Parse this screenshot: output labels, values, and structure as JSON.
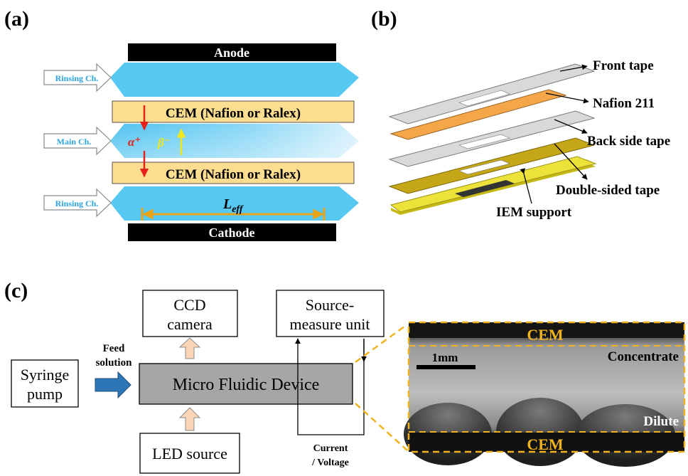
{
  "panel_a": {
    "label": "(a)",
    "anode": "Anode",
    "cathode": "Cathode",
    "rinsing_top": "Rinsing Ch.",
    "main": "Main Ch.",
    "rinsing_bottom": "Rinsing Ch.",
    "cem_top": "CEM (Nafion or Ralex)",
    "cem_bottom": "CEM (Nafion or Ralex)",
    "alpha": "α⁺",
    "beta": "β⁻",
    "leff_main": "L",
    "leff_sub": "eff",
    "colors": {
      "channel": "#56c8f2",
      "cem": "#fddd8f",
      "electrode": "#000000",
      "alpha": "#e32119",
      "beta": "#f2e71a",
      "leff": "#e8a316"
    }
  },
  "panel_b": {
    "label": "(b)",
    "front_tape": "Front tape",
    "nafion": "Nafion 211",
    "back_tape": "Back side tape",
    "double_tape": "Double-sided tape",
    "iem_support": "IEM support",
    "colors": {
      "tape": "#d9d9d9",
      "nafion": "#f4a649",
      "double": "#c5a617",
      "support": "#ece23a"
    }
  },
  "panel_c": {
    "label": "(c)",
    "syringe_line1": "Syringe",
    "syringe_line2": "pump",
    "feed_line1": "Feed",
    "feed_line2": "solution",
    "ccd_line1": "CCD",
    "ccd_line2": "camera",
    "smu_line1": "Source-",
    "smu_line2": "measure unit",
    "device": "Micro Fluidic Device",
    "led": "LED source",
    "current_line1": "Current",
    "current_line2": "/ Voltage",
    "cem_top": "CEM",
    "cem_bottom": "CEM",
    "scale": "1mm",
    "concentrate": "Concentrate",
    "dilute": "Dilute",
    "colors": {
      "device": "#a6a6a6",
      "arrow_blue": "#2e75b6",
      "arrow_peach": "#fbd5b5",
      "dash": "#f0b21f"
    }
  }
}
